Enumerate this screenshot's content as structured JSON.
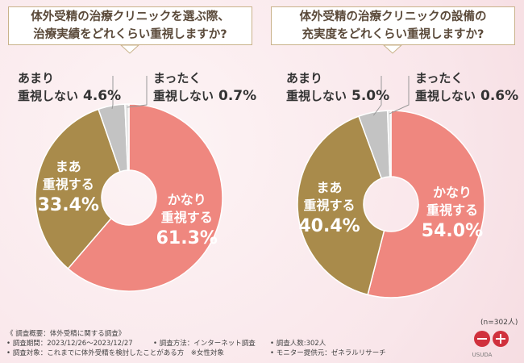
{
  "chart_data": [
    {
      "type": "pie",
      "title": "体外受精の治療クリニックを選ぶ際、\n治療実績をどれくらい重視しますか?",
      "categories": [
        "かなり\n重視する",
        "まあ\n重視する",
        "あまり\n重視しない",
        "まったく\n重視しない"
      ],
      "values": [
        61.3,
        33.4,
        4.6,
        0.7
      ],
      "value_labels": [
        "61.3%",
        "33.4%",
        "4.6%",
        "0.7%"
      ],
      "colors": [
        "#ef877f",
        "#a98b4b",
        "#c3c3c3",
        "#e6e6e6"
      ]
    },
    {
      "type": "pie",
      "title": "体外受精の治療クリニックの設備の\n充実度をどれくらい重視しますか?",
      "categories": [
        "かなり\n重視する",
        "まあ\n重視する",
        "あまり\n重視しない",
        "まったく\n重視しない"
      ],
      "values": [
        54.0,
        40.4,
        5.0,
        0.6
      ],
      "value_labels": [
        "54.0%",
        "40.4%",
        "5.0%",
        "0.6%"
      ],
      "colors": [
        "#ef877f",
        "#a98b4b",
        "#c3c3c3",
        "#e6e6e6"
      ]
    }
  ],
  "footer": {
    "sample": "(n=302人)",
    "heading": "《 調査概要：体外受精に関する調査》",
    "items": [
      "• 調査期間：2023/12/26〜2023/12/27",
      "• 調査方法：インターネット調査",
      "• 調査人数:302人",
      "• 調査対象：これまでに体外受精を検討したことがある方　※女性対象",
      "• モニター提供元：ゼネラルリサーチ"
    ],
    "logo": "USUDA"
  }
}
